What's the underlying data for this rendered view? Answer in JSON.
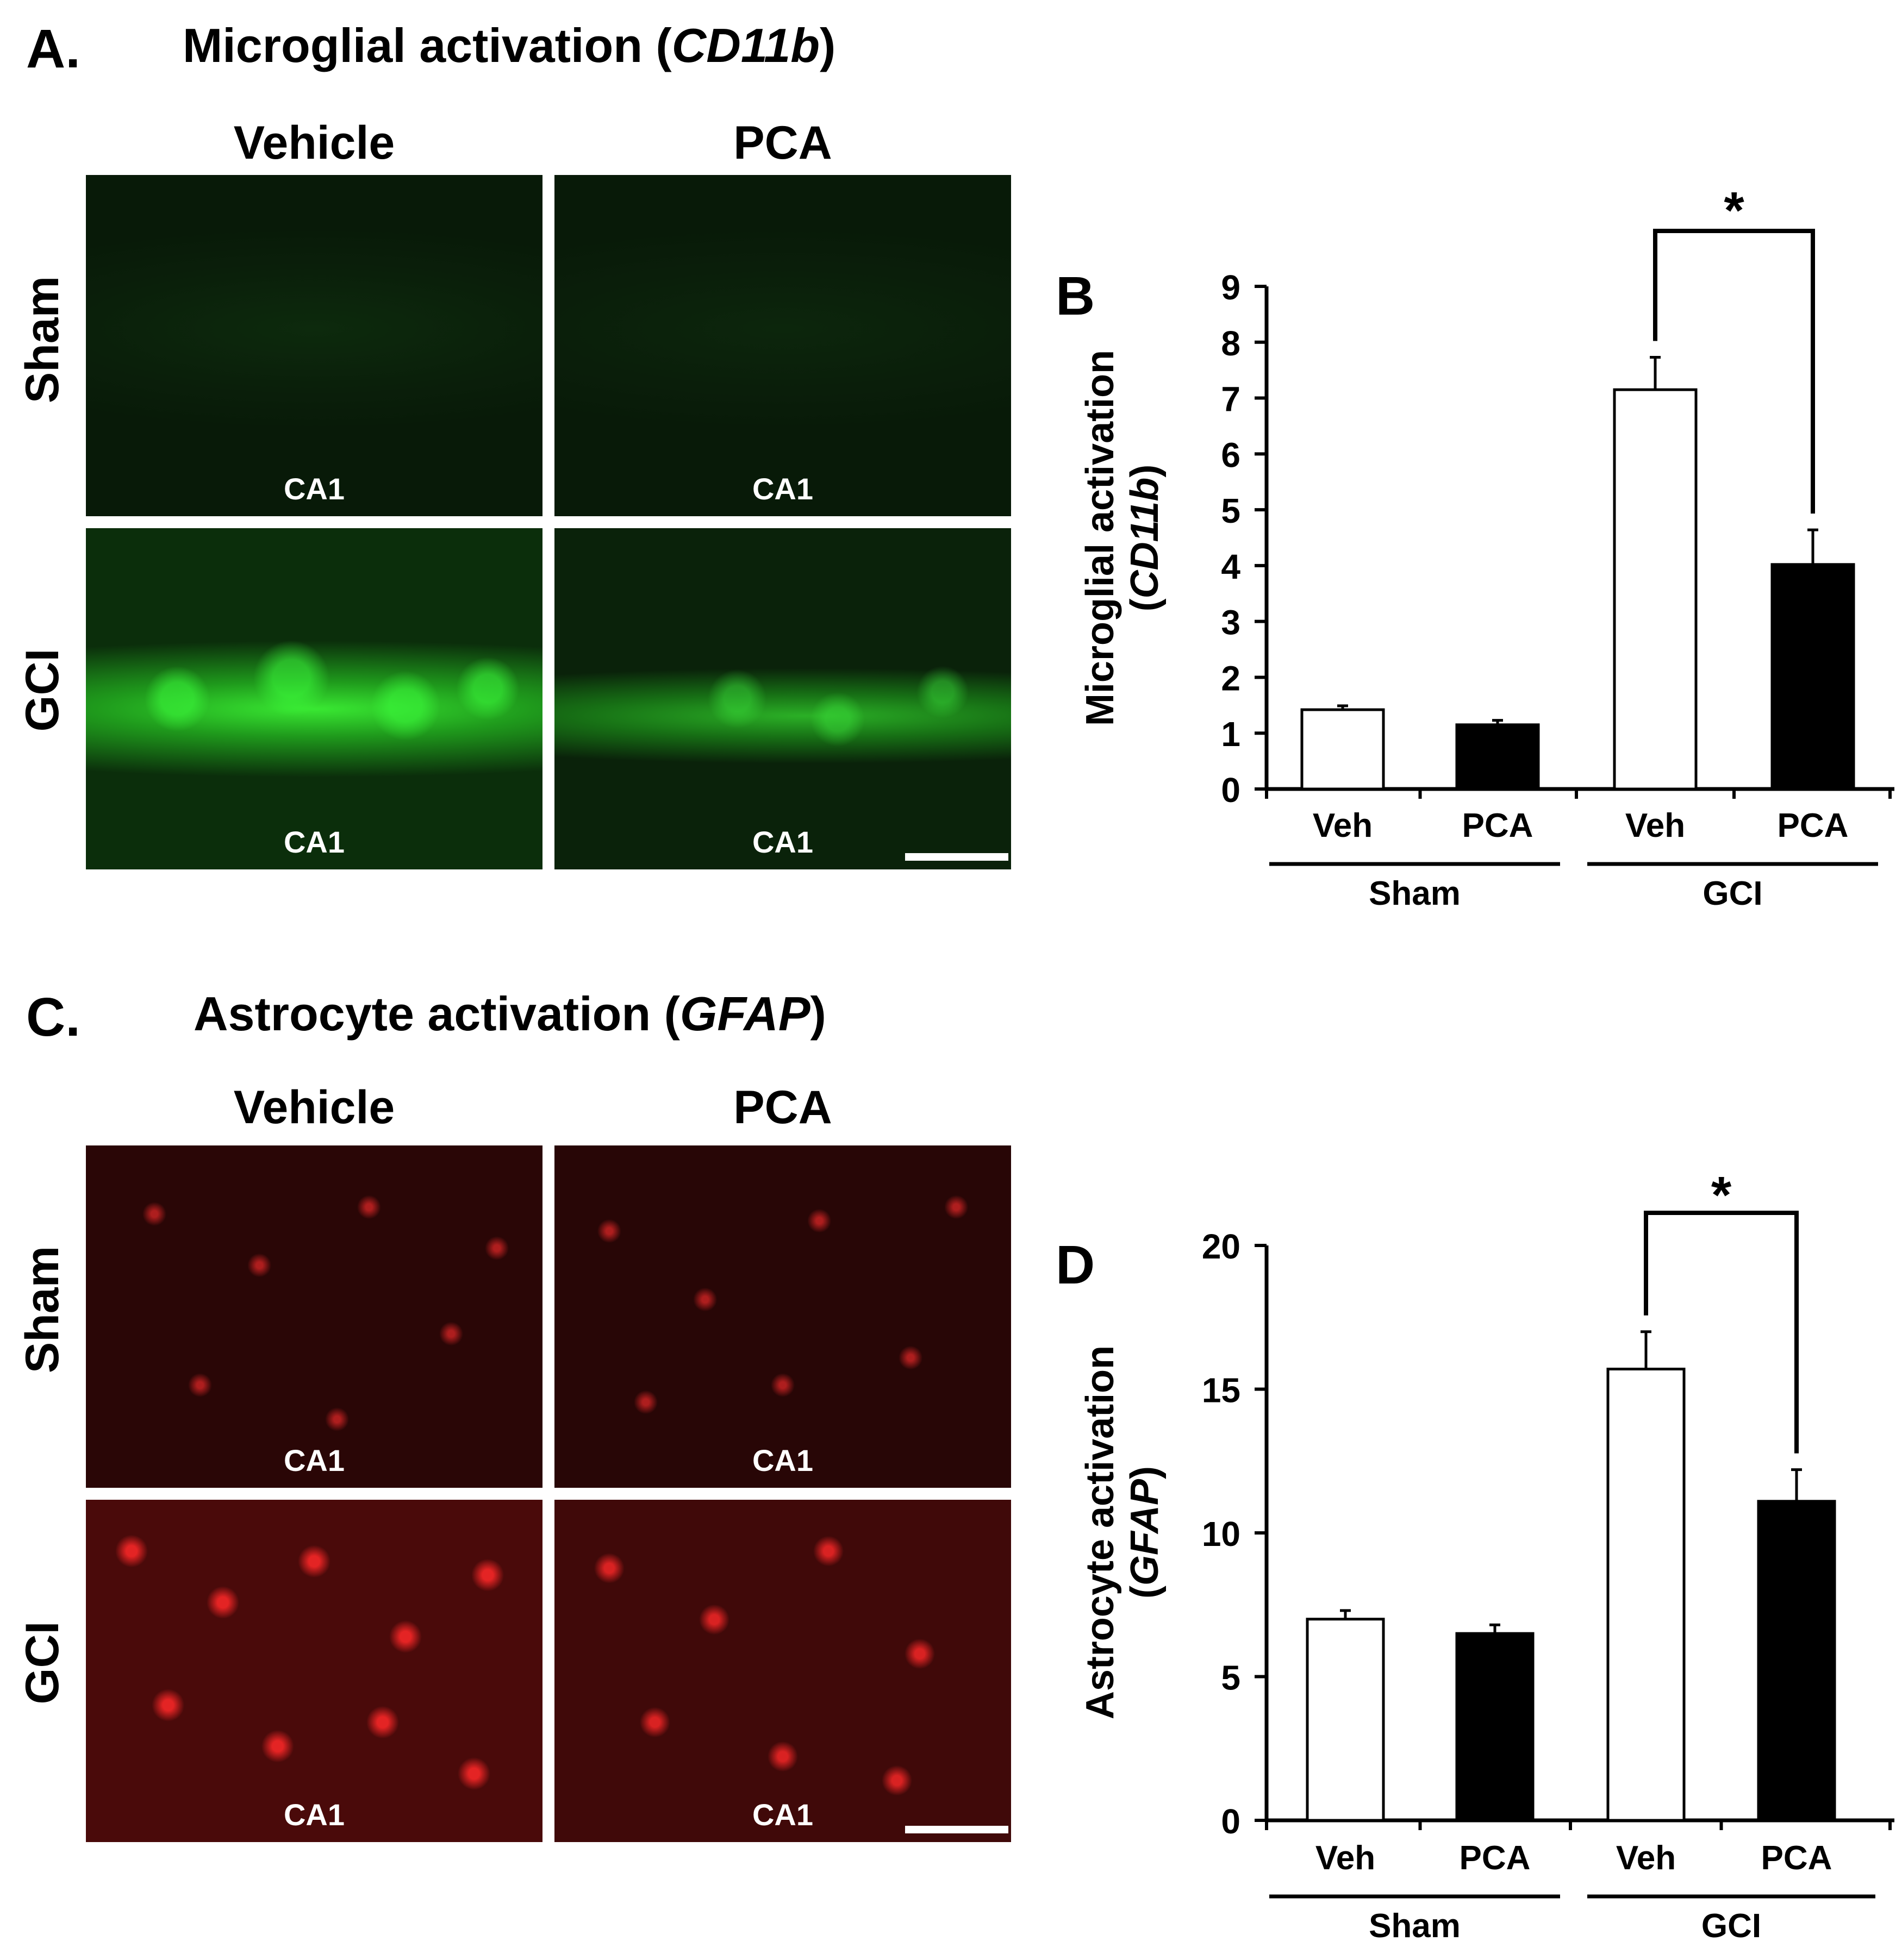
{
  "figure": {
    "panels": {
      "A": {
        "letter": "A.",
        "title_prefix": "Microglial activation (",
        "title_italic": "CD11b",
        "title_suffix": ")",
        "columns": [
          "Vehicle",
          "PCA"
        ],
        "rows": [
          "Sham",
          "GCI"
        ],
        "region_label": "CA1",
        "stain_color": "#22c41e"
      },
      "C": {
        "letter": "C.",
        "title_prefix": "Astrocyte activation (",
        "title_italic": "GFAP",
        "title_suffix": ")",
        "columns": [
          "Vehicle",
          "PCA"
        ],
        "rows": [
          "Sham",
          "GCI"
        ],
        "region_label": "CA1",
        "stain_color": "#e01616"
      }
    }
  },
  "chart_data": [
    {
      "type": "bar",
      "panel": "B",
      "ylabel_line1": "Microglial activation",
      "ylabel_line2": "CD11b",
      "ylim": [
        0,
        9
      ],
      "yticks": [
        0,
        1,
        2,
        3,
        4,
        5,
        6,
        7,
        8,
        9
      ],
      "categories": [
        "Veh",
        "PCA",
        "Veh",
        "PCA"
      ],
      "groups": [
        "Sham",
        "GCI"
      ],
      "values": [
        1.42,
        1.15,
        7.15,
        4.02
      ],
      "errors": [
        0.07,
        0.08,
        0.58,
        0.62
      ],
      "bar_fills": [
        "#ffffff",
        "#000000",
        "#ffffff",
        "#000000"
      ],
      "significance": {
        "from": 2,
        "to": 3,
        "label": "*"
      }
    },
    {
      "type": "bar",
      "panel": "D",
      "ylabel_line1": "Astrocyte activation",
      "ylabel_line2": "GFAP",
      "ylim": [
        0,
        20
      ],
      "yticks": [
        0,
        5,
        10,
        15,
        20
      ],
      "categories": [
        "Veh",
        "PCA",
        "Veh",
        "PCA"
      ],
      "groups": [
        "Sham",
        "GCI"
      ],
      "values": [
        7.0,
        6.5,
        15.7,
        11.1
      ],
      "errors": [
        0.3,
        0.3,
        1.3,
        1.1
      ],
      "bar_fills": [
        "#ffffff",
        "#000000",
        "#ffffff",
        "#000000"
      ],
      "significance": {
        "from": 2,
        "to": 3,
        "label": "*"
      }
    }
  ]
}
